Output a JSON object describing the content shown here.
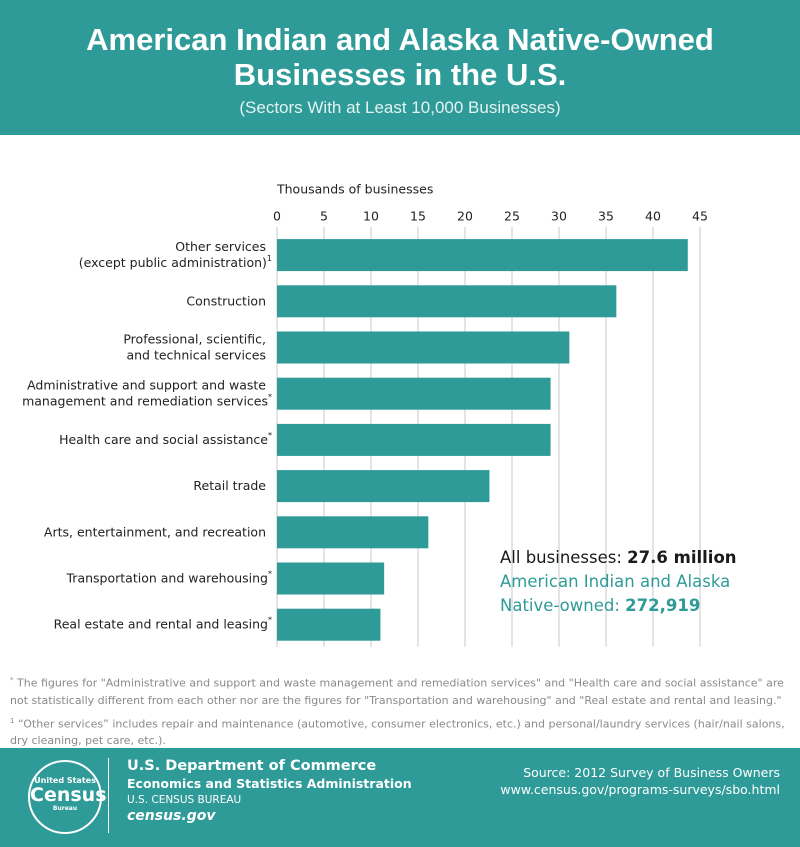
{
  "chart_data": {
    "type": "bar",
    "orientation": "horizontal",
    "title": "American Indian and Alaska Native-Owned Businesses in the U.S.",
    "subtitle": "(Sectors With at Least 10,000 Businesses)",
    "x_label": "Thousands of businesses",
    "categories": [
      [
        "Other services",
        "(except public administration)"
      ],
      [
        "Construction"
      ],
      [
        "Professional, scientific,",
        "and technical services"
      ],
      [
        "Administrative and support and waste",
        "management and remediation services"
      ],
      [
        "Health care and social assistance"
      ],
      [
        "Retail trade"
      ],
      [
        "Arts, entertainment, and recreation"
      ],
      [
        "Transportation and warehousing"
      ],
      [
        "Real estate and rental and leasing"
      ]
    ],
    "category_notes": [
      "1",
      null,
      null,
      "*",
      "*",
      null,
      null,
      "*",
      "*"
    ],
    "values": [
      43.7,
      36.1,
      31.1,
      29.1,
      29.1,
      22.6,
      16.1,
      11.4,
      11.0
    ],
    "color": "#2e9b98",
    "xlim": [
      0,
      45
    ],
    "xticks": [
      0,
      5,
      10,
      15,
      20,
      25,
      30,
      35,
      40,
      45
    ],
    "grid": true,
    "annotation": {
      "all_label": "All businesses:",
      "all_value": "27.6 million",
      "aian_label": "American Indian and Alaska Native-owned:",
      "aian_value": "272,919"
    }
  },
  "footnotes": [
    {
      "marker": "*",
      "text": "The figures for \"Administrative and support and waste management and remediation services\" and \"Health care and social assistance\" are not statistically different from each other nor are the figures for \"Transportation and warehousing\" and \"Real estate and rental and leasing.\""
    },
    {
      "marker": "1",
      "text": "“Other services” includes repair and maintenance (automotive, consumer electronics, etc.) and personal/laundry services (hair/nail salons, dry cleaning, pet care, etc.)."
    }
  ],
  "footer": {
    "logo": [
      "United States",
      "Census",
      "Bureau"
    ],
    "department": "U.S. Department of Commerce",
    "administration": "Economics and Statistics Administration",
    "bureau": "U.S. CENSUS BUREAU",
    "website": "census.gov",
    "source": "Source: 2012 Survey of Business Owners",
    "url": "www.census.gov/programs-surveys/sbo.html"
  }
}
